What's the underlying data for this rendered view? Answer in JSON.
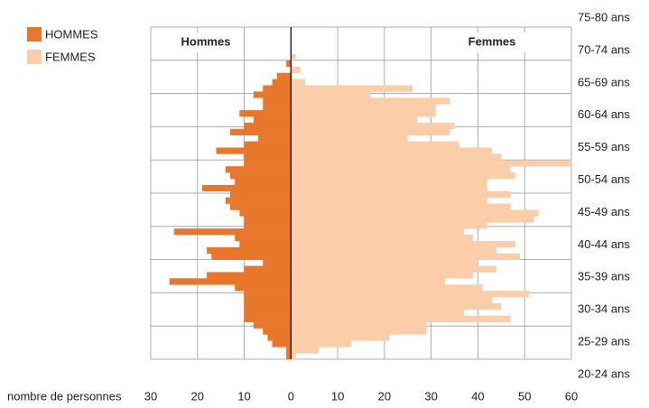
{
  "chart_data": {
    "type": "pyramid",
    "legend": [
      "HOMMES",
      "FEMMES"
    ],
    "left_label": "Hommes",
    "right_label": "Femmes",
    "xlabel": "nombre de personnes",
    "categories": [
      null,
      null,
      null,
      null,
      null,
      null,
      null,
      null,
      null,
      null,
      null,
      null,
      null,
      null,
      null,
      null,
      null,
      null,
      null,
      null,
      null,
      null,
      null,
      null,
      null,
      null,
      null,
      null,
      null,
      null,
      null,
      null,
      null,
      null,
      null,
      null,
      null,
      null,
      null,
      null,
      null,
      null,
      null,
      null,
      null,
      null,
      null,
      null,
      null
    ],
    "age_groups": [
      "20-24 ans",
      "25-29 ans",
      "30-34 ans",
      "35-39 ans",
      "40-44 ans",
      "45-49 ans",
      "50-54 ans",
      "55-59 ans",
      "60-64 ans",
      "65-69 ans",
      "70-74 ans",
      "75-80 ans"
    ],
    "series": [
      {
        "name": "HOMMES",
        "color": "#e8762b",
        "values": [
          -1,
          -1,
          -4,
          -5,
          -6,
          -8,
          -10,
          -10,
          -10,
          -10,
          -10,
          -12,
          -26,
          -18,
          -10,
          -6,
          -17,
          -18,
          -11,
          -12,
          -25,
          -10,
          -10,
          -11,
          -13,
          -14,
          -13,
          -19,
          -12,
          -13,
          -14,
          -10,
          -10,
          -16,
          -10,
          -7,
          -13,
          -10,
          -8,
          -11,
          -6,
          -6,
          -8,
          -6,
          -4,
          -3,
          0,
          -1,
          0
        ]
      },
      {
        "name": "FEMMES",
        "color": "#fbcda9",
        "values": [
          1,
          6,
          13,
          21,
          29,
          29,
          47,
          37,
          45,
          43,
          51,
          41,
          33,
          39,
          44,
          40,
          49,
          44,
          48,
          39,
          37,
          42,
          52,
          53,
          47,
          42,
          47,
          42,
          42,
          48,
          47,
          60,
          45,
          43,
          36,
          25,
          34,
          35,
          27,
          31,
          31,
          34,
          17,
          26,
          3,
          0,
          2,
          0,
          1
        ]
      }
    ],
    "xlim": [
      -30,
      60
    ],
    "xticks": [
      {
        "value": -30,
        "label": "30"
      },
      {
        "value": -20,
        "label": "20"
      },
      {
        "value": -10,
        "label": "10"
      },
      0,
      10,
      20,
      30,
      40,
      50,
      60
    ],
    "grid": true
  }
}
